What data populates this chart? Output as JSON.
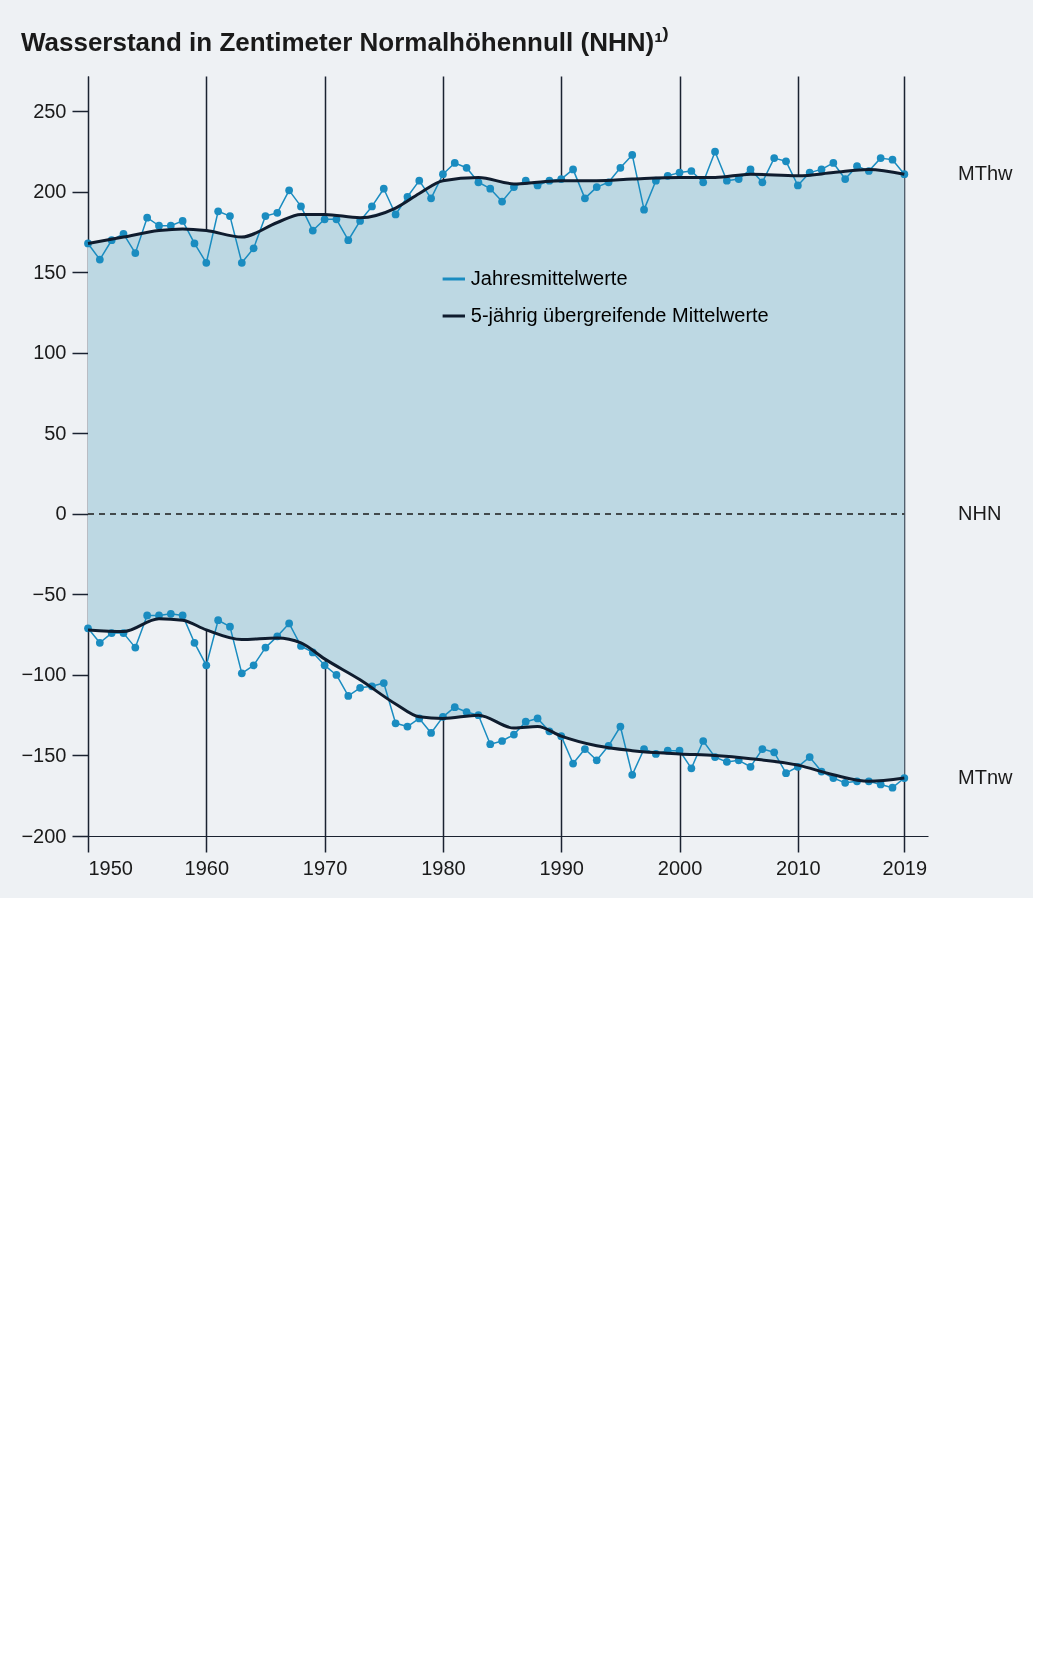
{
  "chart_data": {
    "type": "line",
    "title": "Wasserstand in Zentimeter Normalhöhennull (NHN)¹⁾",
    "x": [
      1950,
      1951,
      1952,
      1953,
      1954,
      1955,
      1956,
      1957,
      1958,
      1959,
      1960,
      1961,
      1962,
      1963,
      1964,
      1965,
      1966,
      1967,
      1968,
      1969,
      1970,
      1971,
      1972,
      1973,
      1974,
      1975,
      1976,
      1977,
      1978,
      1979,
      1980,
      1981,
      1982,
      1983,
      1984,
      1985,
      1986,
      1987,
      1988,
      1989,
      1990,
      1991,
      1992,
      1993,
      1994,
      1995,
      1996,
      1997,
      1998,
      1999,
      2000,
      2001,
      2002,
      2003,
      2004,
      2005,
      2006,
      2007,
      2008,
      2009,
      2010,
      2011,
      2012,
      2013,
      2014,
      2015,
      2016,
      2017,
      2018,
      2019
    ],
    "series": [
      {
        "name": "Jahresmittelwerte",
        "color": "#1a8cc0",
        "marker": "circle",
        "values": [
          168,
          158,
          170,
          174,
          162,
          184,
          179,
          179,
          182,
          168,
          156,
          188,
          185,
          156,
          165,
          185,
          187,
          201,
          191,
          176,
          183,
          183,
          170,
          182,
          191,
          202,
          186,
          197,
          207,
          196,
          211,
          218,
          215,
          206,
          202,
          194,
          203,
          207,
          204,
          207,
          208,
          214,
          196,
          203,
          206,
          215,
          223,
          189,
          207,
          210,
          212,
          213,
          206,
          225,
          207,
          208,
          214,
          206,
          221,
          219,
          204,
          212,
          214,
          218,
          208,
          216,
          213,
          221,
          220,
          211
        ]
      },
      {
        "color": "#1a8cc0",
        "marker": "circle",
        "values": [
          -71,
          -80,
          -74,
          -74,
          -83,
          -63,
          -63,
          -62,
          -63,
          -80,
          -94,
          -66,
          -70,
          -99,
          -94,
          -83,
          -76,
          -68,
          -82,
          -86,
          -94,
          -100,
          -113,
          -108,
          -107,
          -105,
          -130,
          -132,
          -127,
          -136,
          -126,
          -120,
          -123,
          -125,
          -143,
          -141,
          -137,
          -129,
          -127,
          -135,
          -138,
          -155,
          -146,
          -153,
          -144,
          -132,
          -162,
          -146,
          -149,
          -147,
          -147,
          -158,
          -141,
          -151,
          -154,
          -153,
          -157,
          -146,
          -148,
          -161,
          -157,
          -151,
          -160,
          -164,
          -167,
          -166,
          -166,
          -168,
          -170,
          -164
        ]
      },
      {
        "name": "5-jährig übergreifende Mittelwerte",
        "color": "#0f1c2e",
        "x": [
          1950,
          1953,
          1956,
          1958,
          1960,
          1963,
          1966,
          1968,
          1970,
          1973,
          1976,
          1978,
          1980,
          1983,
          1986,
          1988,
          1990,
          1993,
          1996,
          2000,
          2003,
          2006,
          2010,
          2013,
          2016,
          2019
        ],
        "values": [
          168,
          172,
          176,
          177,
          176,
          172,
          181,
          186,
          186,
          184,
          190,
          199,
          207,
          209,
          205,
          206,
          207,
          207,
          208,
          209,
          209,
          211,
          210,
          212,
          214,
          211
        ],
        "upper": [
          168,
          172,
          176,
          177,
          176,
          172,
          181,
          186,
          186,
          184,
          190,
          199,
          207,
          209,
          205,
          206,
          207,
          207,
          208,
          209,
          209,
          211,
          210,
          212,
          214,
          211
        ],
        "lower": [
          -72,
          -73,
          -65,
          -66,
          -72,
          -78,
          -77,
          -80,
          -90,
          -103,
          -118,
          -126,
          -127,
          -125,
          -133,
          -132,
          -138,
          -144,
          -147,
          -149,
          -150,
          -152,
          -156,
          -162,
          -166,
          -164
        ]
      },
      {
        "color": "#0f1c2e",
        "x": [
          1950,
          1953,
          1956,
          1958,
          1960,
          1963,
          1966,
          1968,
          1970,
          1973,
          1976,
          1978,
          1980,
          1983,
          1986,
          1988,
          1990,
          1993,
          1996,
          2000,
          2003,
          2006,
          2010,
          2013,
          2016,
          2019
        ],
        "values": [
          -72,
          -73,
          -65,
          -66,
          -72,
          -78,
          -77,
          -80,
          -90,
          -103,
          -118,
          -126,
          -127,
          -125,
          -133,
          -132,
          -138,
          -144,
          -147,
          -149,
          -150,
          -152,
          -156,
          -162,
          -166,
          -164
        ]
      }
    ],
    "xlim": [
      1950,
      2021
    ],
    "xticks": [
      1950,
      1960,
      1970,
      1980,
      1990,
      2000,
      2010,
      2019
    ],
    "ylim": [
      -200,
      272
    ],
    "yticks": [
      -200,
      -150,
      -100,
      -50,
      0,
      50,
      100,
      150,
      200,
      250
    ],
    "grid": "x",
    "legend": "top",
    "line_style": "solid",
    "ref_lines": [
      {
        "axis": "y",
        "value": 0,
        "line_style": "dashed",
        "color": "#1a1a1a"
      }
    ],
    "annotations": [
      "MThw",
      "NHN",
      "MTnw"
    ]
  }
}
